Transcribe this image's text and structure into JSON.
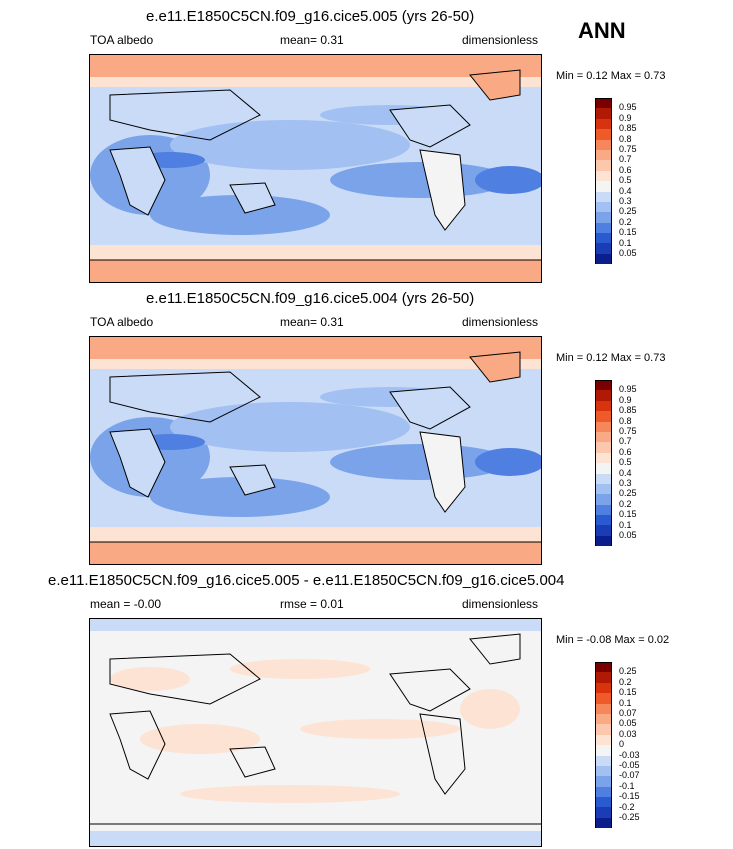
{
  "season": "ANN",
  "panels": [
    {
      "title": "e.e11.E1850C5CN.f09_g16.cice5.005 (yrs 26-50)",
      "left": "TOA albedo",
      "middle": "mean=  0.31",
      "right": "dimensionless",
      "minmax": "Min =  0.12 Max =  0.73",
      "colorbar": "abs"
    },
    {
      "title": "e.e11.E1850C5CN.f09_g16.cice5.004 (yrs 26-50)",
      "left": "TOA albedo",
      "middle": "mean=  0.31",
      "right": "dimensionless",
      "minmax": "Min =  0.12 Max =  0.73",
      "colorbar": "abs"
    },
    {
      "title": "e.e11.E1850C5CN.f09_g16.cice5.005 - e.e11.E1850C5CN.f09_g16.cice5.004",
      "left": "mean = -0.00",
      "middle": "rmse =  0.01",
      "right": "dimensionless",
      "minmax": "Min = -0.08 Max =  0.02",
      "colorbar": "diff"
    }
  ],
  "colorbars": {
    "abs": {
      "labels": [
        "0.95",
        "0.9",
        "0.85",
        "0.8",
        "0.75",
        "0.7",
        "0.6",
        "0.5",
        "0.4",
        "0.3",
        "0.25",
        "0.2",
        "0.15",
        "0.1",
        "0.05"
      ],
      "colors": [
        "#7a0000",
        "#b01a05",
        "#d8330f",
        "#ee5a2a",
        "#f6875a",
        "#f9a984",
        "#fbc7ad",
        "#fde3d4",
        "#f4f4f4",
        "#c9dbf7",
        "#a2c0f2",
        "#7aa3ea",
        "#4f7fe0",
        "#2a5ad0",
        "#1a3cb4",
        "#0a1f8c"
      ]
    },
    "diff": {
      "labels": [
        "0.25",
        "0.2",
        "0.15",
        "0.1",
        "0.07",
        "0.05",
        "0.03",
        "0",
        "-0.03",
        "-0.05",
        "-0.07",
        "-0.1",
        "-0.15",
        "-0.2",
        "-0.25"
      ],
      "colors": [
        "#7a0000",
        "#b01a05",
        "#d8330f",
        "#ee5a2a",
        "#f6875a",
        "#f9a984",
        "#fbc7ad",
        "#fde3d4",
        "#f4f4f4",
        "#c9dbf7",
        "#a2c0f2",
        "#7aa3ea",
        "#4f7fe0",
        "#2a5ad0",
        "#1a3cb4",
        "#0a1f8c"
      ]
    }
  },
  "chart_data": [
    {
      "type": "heatmap",
      "title": "e.e11.E1850C5CN.f09_g16.cice5.005 (yrs 26-50)",
      "field": "TOA albedo",
      "units": "dimensionless",
      "mean": 0.31,
      "min": 0.12,
      "max": 0.73,
      "contour_levels": [
        0.05,
        0.1,
        0.15,
        0.2,
        0.25,
        0.3,
        0.4,
        0.5,
        0.6,
        0.7,
        0.75,
        0.8,
        0.85,
        0.9,
        0.95
      ]
    },
    {
      "type": "heatmap",
      "title": "e.e11.E1850C5CN.f09_g16.cice5.004 (yrs 26-50)",
      "field": "TOA albedo",
      "units": "dimensionless",
      "mean": 0.31,
      "min": 0.12,
      "max": 0.73,
      "contour_levels": [
        0.05,
        0.1,
        0.15,
        0.2,
        0.25,
        0.3,
        0.4,
        0.5,
        0.6,
        0.7,
        0.75,
        0.8,
        0.85,
        0.9,
        0.95
      ]
    },
    {
      "type": "heatmap",
      "title": "e.e11.E1850C5CN.f09_g16.cice5.005 - e.e11.E1850C5CN.f09_g16.cice5.004",
      "units": "dimensionless",
      "mean": -0.0,
      "rmse": 0.01,
      "min": -0.08,
      "max": 0.02,
      "contour_levels": [
        -0.25,
        -0.2,
        -0.15,
        -0.1,
        -0.07,
        -0.05,
        -0.03,
        0,
        0.03,
        0.05,
        0.07,
        0.1,
        0.15,
        0.2,
        0.25
      ]
    }
  ]
}
